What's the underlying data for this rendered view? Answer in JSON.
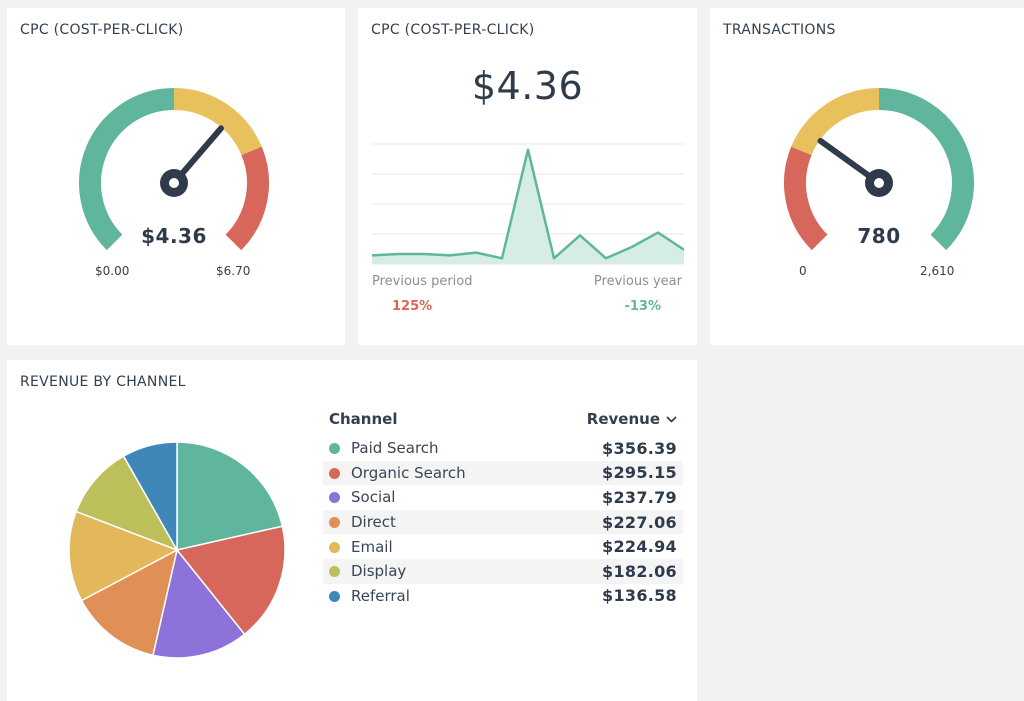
{
  "cards": {
    "cpc_gauge": {
      "title": "CPC (COST-PER-CLICK)",
      "value": "$4.36",
      "min_label": "$0.00",
      "max_label": "$6.70",
      "value_num": 4.36,
      "min": 0,
      "max": 6.7,
      "segments": [
        {
          "from": 0.0,
          "to": 0.5,
          "color": "#5fb69c"
        },
        {
          "from": 0.5,
          "to": 0.75,
          "color": "#e9c15c"
        },
        {
          "from": 0.75,
          "to": 1.0,
          "color": "#d6675a"
        }
      ]
    },
    "cpc_trend": {
      "title": "CPC (COST-PER-CLICK)",
      "value": "$4.36",
      "previous_period_label": "Previous period",
      "previous_period_value": "125%",
      "previous_year_label": "Previous year",
      "previous_year_value": "-13%"
    },
    "transactions_gauge": {
      "title": "TRANSACTIONS",
      "value": "780",
      "min_label": "0",
      "max_label": "2,610",
      "value_num": 780,
      "min": 0,
      "max": 2610,
      "segments": [
        {
          "from": 0.0,
          "to": 0.25,
          "color": "#d6675a"
        },
        {
          "from": 0.25,
          "to": 0.5,
          "color": "#e9c15c"
        },
        {
          "from": 0.5,
          "to": 1.0,
          "color": "#5fb69c"
        }
      ]
    },
    "revenue_by_channel": {
      "title": "REVENUE BY CHANNEL",
      "col_channel": "Channel",
      "col_revenue": "Revenue",
      "rows": [
        {
          "channel": "Paid Search",
          "revenue": "$356.39",
          "color": "#5fb69c"
        },
        {
          "channel": "Organic Search",
          "revenue": "$295.15",
          "color": "#d6675a"
        },
        {
          "channel": "Social",
          "revenue": "$237.79",
          "color": "#8d72d9"
        },
        {
          "channel": "Direct",
          "revenue": "$227.06",
          "color": "#e08f56"
        },
        {
          "channel": "Email",
          "revenue": "$224.94",
          "color": "#e2b85b"
        },
        {
          "channel": "Display",
          "revenue": "$182.06",
          "color": "#bdbf5a"
        },
        {
          "channel": "Referral",
          "revenue": "$136.58",
          "color": "#3f86b9"
        }
      ]
    }
  },
  "chart_data": [
    {
      "type": "area",
      "title": "CPC (COST-PER-CLICK)",
      "x": [
        1,
        2,
        3,
        4,
        5,
        6,
        7,
        8,
        9,
        10,
        11,
        12,
        13
      ],
      "values": [
        0.3,
        0.35,
        0.35,
        0.3,
        0.4,
        0.2,
        4.0,
        0.2,
        1.0,
        0.2,
        0.6,
        1.1,
        0.5
      ],
      "ylim": [
        0,
        4.2
      ],
      "xlabel": "",
      "ylabel": "",
      "grid": true
    },
    {
      "type": "pie",
      "title": "REVENUE BY CHANNEL",
      "categories": [
        "Paid Search",
        "Organic Search",
        "Social",
        "Direct",
        "Email",
        "Display",
        "Referral"
      ],
      "values": [
        356.39,
        295.15,
        237.79,
        227.06,
        224.94,
        182.06,
        136.58
      ]
    }
  ]
}
